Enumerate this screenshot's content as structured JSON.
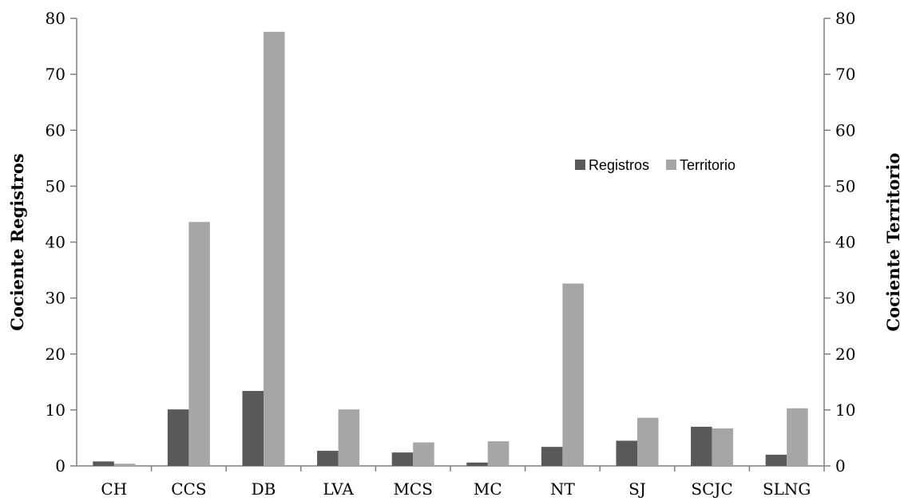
{
  "chart_data": {
    "type": "bar",
    "categories": [
      "CH",
      "CCS",
      "DB",
      "LVA",
      "MCS",
      "MC",
      "NT",
      "SJ",
      "SCJC",
      "SLNG"
    ],
    "series": [
      {
        "name": "Registros",
        "values": [
          0.8,
          10.1,
          13.4,
          2.7,
          2.4,
          0.6,
          3.4,
          4.5,
          7.0,
          2.0
        ],
        "color": "#595959",
        "axis": "left"
      },
      {
        "name": "Territorio",
        "values": [
          0.4,
          43.6,
          77.6,
          10.1,
          4.2,
          4.4,
          32.6,
          8.6,
          6.7,
          10.3
        ],
        "color": "#a6a6a6",
        "axis": "right"
      }
    ],
    "ylabel": "Cociente Registros",
    "y2label": "Cociente Territorio",
    "ylim": [
      0,
      80
    ],
    "y2lim": [
      0,
      80
    ],
    "yticks": [
      "0",
      "10",
      "20",
      "30",
      "40",
      "50",
      "60",
      "70",
      "80"
    ],
    "y2ticks": [
      "0",
      "10",
      "20",
      "30",
      "40",
      "50",
      "60",
      "70",
      "80"
    ],
    "grid": false,
    "legend": "upper-right-center"
  }
}
